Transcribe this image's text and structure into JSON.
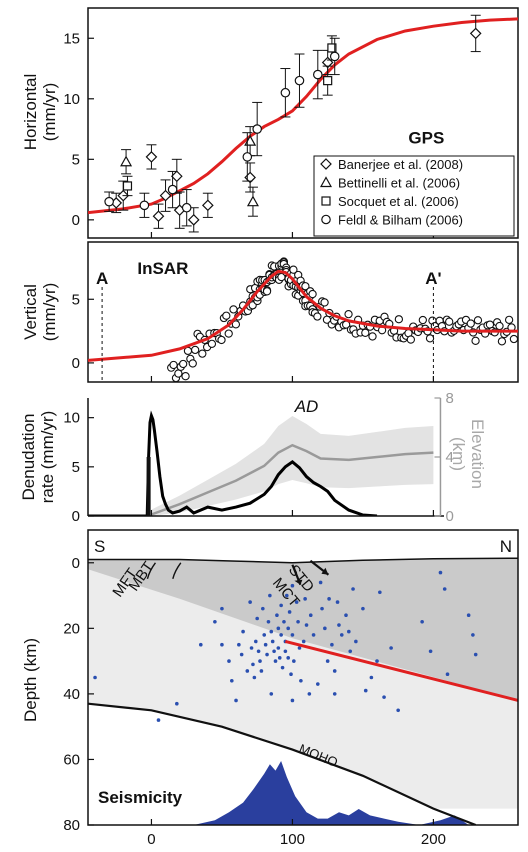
{
  "chart_data": [
    {
      "type": "scatter",
      "panel": "GPS",
      "annotation": "GPS",
      "ylabel": "Horizontal\n(mm/yr)",
      "xlim": [
        -45,
        260
      ],
      "ylim": [
        -1.5,
        17.5
      ],
      "yticks": [
        0,
        5,
        10,
        15
      ],
      "legend_position": "bottom-right",
      "series": [
        {
          "name": "Banerjee et al. (2008)",
          "marker": "diamond",
          "points": [
            [
              -25,
              1.4,
              0.8
            ],
            [
              -20,
              2.0,
              1.2
            ],
            [
              0,
              5.2,
              1.0
            ],
            [
              5,
              0.3,
              1.0
            ],
            [
              10,
              2.0,
              1.3
            ],
            [
              18,
              3.6,
              1.4
            ],
            [
              20,
              0.8,
              1.5
            ],
            [
              30,
              0.0,
              1.0
            ],
            [
              40,
              1.2,
              1.0
            ],
            [
              70,
              3.5,
              1.2
            ],
            [
              125,
              13.0,
              1.0
            ],
            [
              230,
              15.4,
              1.5
            ]
          ]
        },
        {
          "name": "Bettinelli et al. (2006)",
          "marker": "triangle",
          "points": [
            [
              -18,
              4.8,
              1.0
            ],
            [
              70,
              6.5,
              1.2
            ],
            [
              72,
              1.5,
              1.2
            ]
          ]
        },
        {
          "name": "Socquet et al. (2006)",
          "marker": "square",
          "points": [
            [
              -17,
              2.8,
              0.8
            ],
            [
              125,
              11.5,
              1.2
            ],
            [
              128,
              14.2,
              1.0
            ]
          ]
        },
        {
          "name": "Feldl & Bilham (2006)",
          "marker": "circle",
          "points": [
            [
              -30,
              1.5,
              0.8
            ],
            [
              -5,
              1.2,
              1.0
            ],
            [
              15,
              2.5,
              1.5
            ],
            [
              25,
              1.0,
              1.5
            ],
            [
              68,
              5.2,
              2.0
            ],
            [
              75,
              7.5,
              2.2
            ],
            [
              95,
              10.5,
              2.0
            ],
            [
              105,
              11.5,
              2.2
            ],
            [
              118,
              12.0,
              2.0
            ],
            [
              130,
              13.5,
              1.5
            ]
          ]
        }
      ],
      "model_curve": {
        "color": "#e02020",
        "x": [
          -45,
          -20,
          0,
          10,
          20,
          30,
          40,
          50,
          60,
          70,
          80,
          90,
          100,
          110,
          120,
          130,
          140,
          160,
          180,
          200,
          220,
          240,
          260
        ],
        "y": [
          0.6,
          0.9,
          1.3,
          1.8,
          2.4,
          3.0,
          3.8,
          4.8,
          5.9,
          6.9,
          7.7,
          8.3,
          9.0,
          10.2,
          11.6,
          12.8,
          13.7,
          14.9,
          15.6,
          16.0,
          16.3,
          16.5,
          16.6
        ]
      }
    },
    {
      "type": "scatter",
      "panel": "InSAR",
      "annotation": "InSAR",
      "profile_labels": [
        {
          "text": "A",
          "x": -35
        },
        {
          "text": "A'",
          "x": 200
        }
      ],
      "ylabel": "Vertical\n(mm/yr)",
      "xlim": [
        -45,
        260
      ],
      "ylim": [
        -1.5,
        9.5
      ],
      "yticks": [
        0,
        5
      ],
      "model_curve": {
        "color": "#e02020",
        "x": [
          -45,
          0,
          20,
          40,
          55,
          65,
          75,
          85,
          90,
          95,
          100,
          105,
          110,
          120,
          130,
          140,
          160,
          180,
          200,
          220,
          240,
          260
        ],
        "y": [
          0.2,
          0.6,
          1.1,
          1.9,
          3.0,
          4.2,
          5.6,
          6.8,
          7.2,
          7.1,
          6.6,
          5.9,
          5.2,
          4.3,
          3.7,
          3.3,
          2.9,
          2.7,
          2.6,
          2.5,
          2.5,
          2.5
        ]
      }
    },
    {
      "type": "line",
      "panel": "Denudation",
      "annotation": "AD",
      "ylabel": "Denudation\nrate (mm/yr)",
      "y2label": "Elevation\n(km)",
      "xlim": [
        -45,
        260
      ],
      "ylim": [
        0,
        12
      ],
      "yticks": [
        0,
        5,
        10
      ],
      "y2lim": [
        0,
        8
      ],
      "y2ticks": [
        0,
        4,
        8
      ],
      "series": [
        {
          "name": "",
          "color": "#000000",
          "x": [
            -45,
            -3,
            -2,
            -1,
            0,
            1,
            2,
            4,
            6,
            8,
            10,
            12,
            15,
            20,
            25,
            30,
            40,
            50,
            60,
            70,
            80,
            85,
            90,
            95,
            100,
            105,
            110,
            115,
            120,
            125,
            130,
            140,
            150,
            160
          ],
          "y": [
            0,
            0,
            6.0,
            9.5,
            10.2,
            9.8,
            8.8,
            6.5,
            4.0,
            2.0,
            1.2,
            0.6,
            0.3,
            0.5,
            0.9,
            0.3,
            0.9,
            0.6,
            0.9,
            1.3,
            2.2,
            3.0,
            4.2,
            5.0,
            5.5,
            4.9,
            4.0,
            3.4,
            3.0,
            2.5,
            1.6,
            0.6,
            0.1,
            0
          ]
        },
        {
          "name": "",
          "color": "#9a9a9a",
          "axis": "right",
          "x": [
            0,
            20,
            40,
            60,
            80,
            90,
            100,
            110,
            120,
            140,
            160,
            180,
            200
          ],
          "y": [
            0.1,
            0.8,
            1.6,
            2.4,
            3.4,
            4.3,
            4.8,
            4.4,
            3.9,
            3.8,
            4.0,
            4.2,
            4.3
          ]
        }
      ]
    },
    {
      "type": "scatter",
      "panel": "Seismicity",
      "annotation": "Seismicity",
      "corner_labels": [
        "S",
        "N"
      ],
      "structure_labels": [
        "MFT",
        "MBT",
        "MCT",
        "STD",
        "MOHO"
      ],
      "ylabel": "Depth (km)",
      "xlim": [
        -45,
        260
      ],
      "ylim": [
        80,
        -10
      ],
      "yticks": [
        0,
        20,
        40,
        60,
        80
      ],
      "xticks": [
        0,
        100,
        200
      ],
      "moho_curve": {
        "x": [
          -45,
          0,
          50,
          100,
          150,
          200,
          230
        ],
        "y": [
          43,
          45,
          50,
          57,
          65,
          75,
          80
        ]
      },
      "fault_line": {
        "color": "#e02020",
        "x": [
          95,
          260
        ],
        "y": [
          24,
          42
        ]
      },
      "seismicity_histogram": {
        "x": [
          30,
          45,
          55,
          65,
          72,
          80,
          84,
          88,
          92,
          96,
          102,
          110,
          118,
          125,
          133,
          140,
          147,
          155,
          165,
          175,
          190,
          205,
          215,
          225
        ],
        "y": [
          0,
          1.5,
          4,
          7,
          11,
          16,
          19,
          17,
          20,
          15,
          9,
          4,
          2,
          2,
          4,
          3,
          5,
          3,
          2,
          1,
          0,
          1.5,
          3,
          0
        ]
      },
      "events": [
        [
          -40,
          35
        ],
        [
          5,
          48
        ],
        [
          18,
          43
        ],
        [
          35,
          25
        ],
        [
          45,
          18
        ],
        [
          50,
          25
        ],
        [
          55,
          30
        ],
        [
          57,
          36
        ],
        [
          62,
          25
        ],
        [
          64,
          28
        ],
        [
          65,
          21
        ],
        [
          68,
          33
        ],
        [
          70,
          12
        ],
        [
          71,
          26
        ],
        [
          72,
          31
        ],
        [
          73,
          35
        ],
        [
          74,
          24
        ],
        [
          75,
          17
        ],
        [
          76,
          27
        ],
        [
          77,
          30
        ],
        [
          78,
          33
        ],
        [
          79,
          14
        ],
        [
          80,
          22
        ],
        [
          81,
          25
        ],
        [
          82,
          28
        ],
        [
          83,
          18
        ],
        [
          84,
          10
        ],
        [
          85,
          21
        ],
        [
          86,
          24
        ],
        [
          87,
          27
        ],
        [
          88,
          30
        ],
        [
          89,
          16
        ],
        [
          90,
          20
        ],
        [
          90,
          26
        ],
        [
          91,
          29
        ],
        [
          92,
          13
        ],
        [
          92,
          22
        ],
        [
          93,
          32
        ],
        [
          94,
          18
        ],
        [
          95,
          24
        ],
        [
          95,
          27
        ],
        [
          96,
          10
        ],
        [
          97,
          20
        ],
        [
          97,
          29
        ],
        [
          98,
          15
        ],
        [
          99,
          34
        ],
        [
          100,
          22
        ],
        [
          100,
          7
        ],
        [
          101,
          30
        ],
        [
          103,
          12
        ],
        [
          104,
          18
        ],
        [
          105,
          26
        ],
        [
          106,
          36
        ],
        [
          108,
          24
        ],
        [
          109,
          11
        ],
        [
          110,
          19
        ],
        [
          112,
          40
        ],
        [
          113,
          16
        ],
        [
          115,
          22
        ],
        [
          118,
          37
        ],
        [
          120,
          6
        ],
        [
          121,
          14
        ],
        [
          123,
          20
        ],
        [
          125,
          30
        ],
        [
          126,
          11
        ],
        [
          128,
          25
        ],
        [
          130,
          33
        ],
        [
          132,
          12
        ],
        [
          133,
          19
        ],
        [
          135,
          22
        ],
        [
          138,
          16
        ],
        [
          140,
          21
        ],
        [
          141,
          27
        ],
        [
          143,
          8
        ],
        [
          145,
          24
        ],
        [
          150,
          14
        ],
        [
          152,
          39
        ],
        [
          156,
          35
        ],
        [
          160,
          30
        ],
        [
          162,
          9
        ],
        [
          165,
          41
        ],
        [
          170,
          26
        ],
        [
          175,
          45
        ],
        [
          192,
          18
        ],
        [
          198,
          27
        ],
        [
          205,
          3
        ],
        [
          208,
          8
        ],
        [
          210,
          34
        ],
        [
          225,
          16
        ],
        [
          228,
          22
        ],
        [
          230,
          28
        ],
        [
          50,
          14
        ],
        [
          60,
          42
        ],
        [
          85,
          40
        ],
        [
          100,
          42
        ],
        [
          130,
          40
        ]
      ]
    }
  ]
}
